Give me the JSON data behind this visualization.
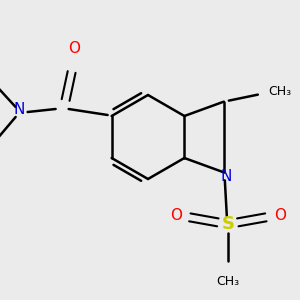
{
  "background_color": "#ebebeb",
  "bond_color": "#000000",
  "bond_width": 1.8,
  "figsize": [
    3.0,
    3.0
  ],
  "dpi": 100,
  "colors": {
    "N": "#0000dd",
    "O": "#ff0000",
    "S": "#cccc00",
    "C": "#000000"
  }
}
